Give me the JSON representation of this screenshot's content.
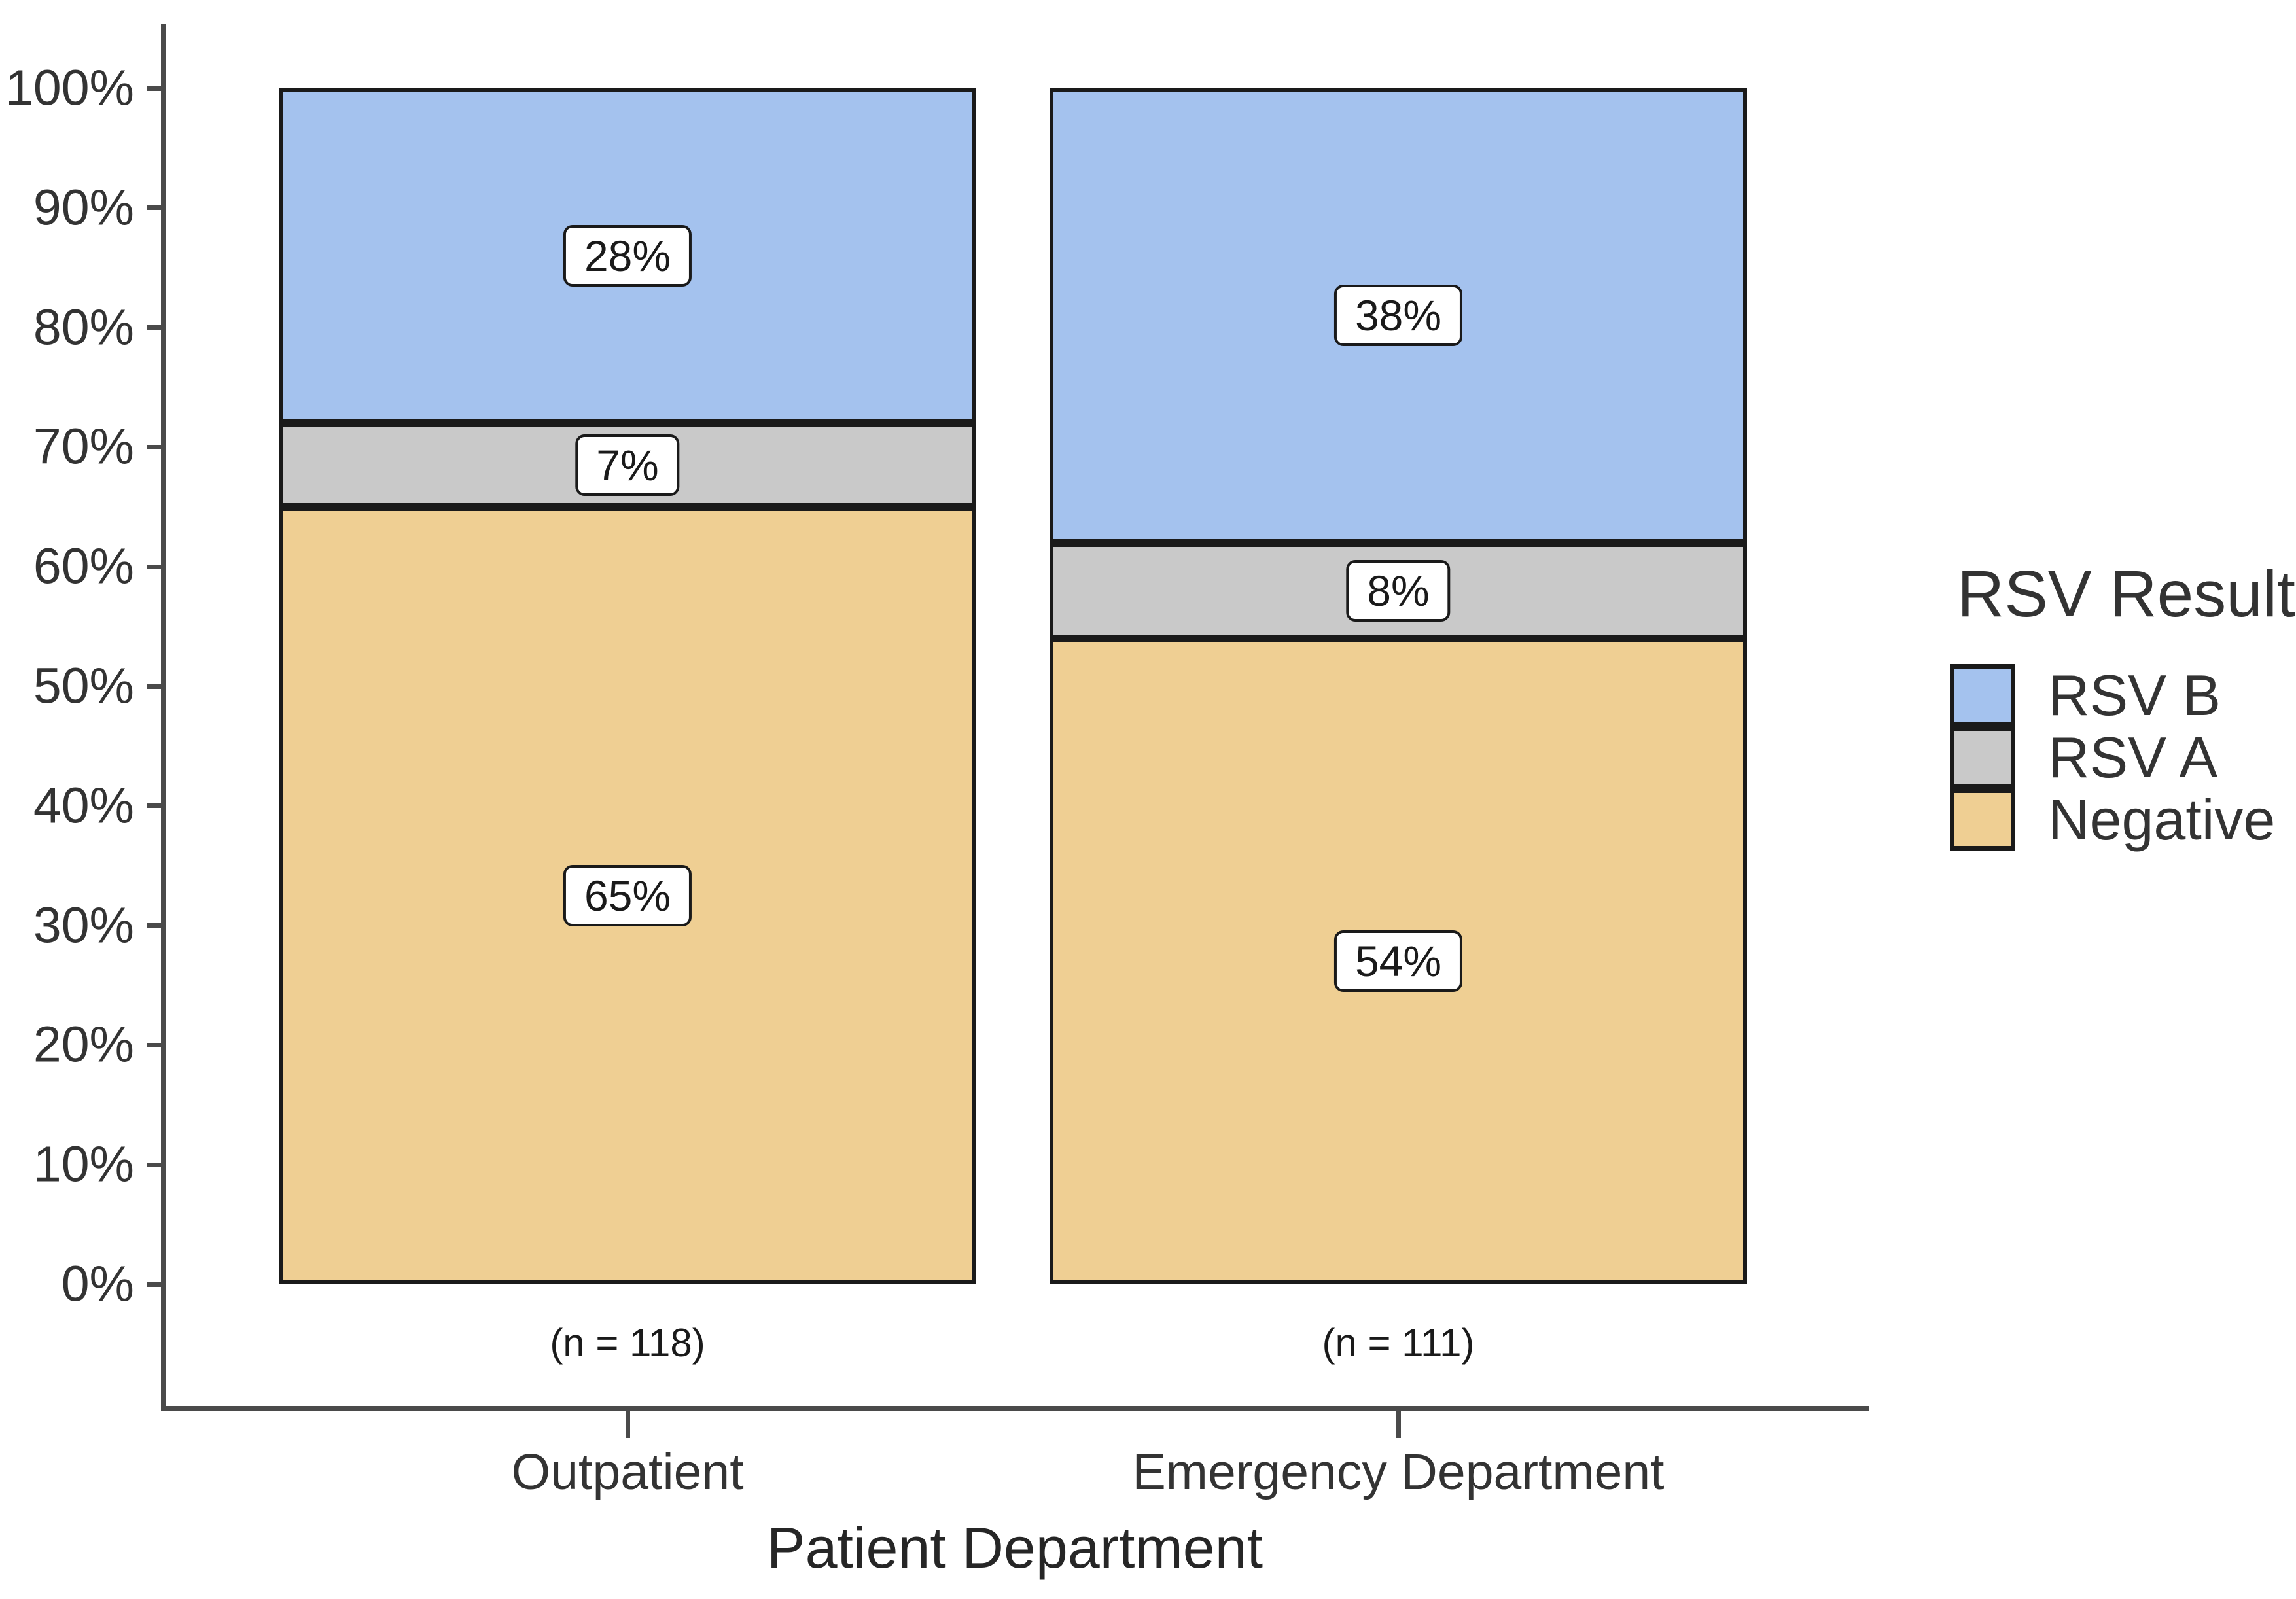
{
  "chart_data": {
    "type": "bar",
    "subtype": "stacked-percent-bar",
    "xlabel": "Patient Department",
    "ylabel": "",
    "ylim": [
      0,
      100
    ],
    "grid": false,
    "y_tick_values": [
      0,
      10,
      20,
      30,
      40,
      50,
      60,
      70,
      80,
      90,
      100
    ],
    "y_tick_labels": [
      "0%",
      "10%",
      "20%",
      "30%",
      "40%",
      "50%",
      "60%",
      "70%",
      "80%",
      "90%",
      "100%"
    ],
    "categories": [
      {
        "label": "Outpatient",
        "n_label": "(n = 118)"
      },
      {
        "label": "Emergency Department",
        "n_label": "(n = 111)"
      }
    ],
    "series": [
      {
        "name": "RSV B",
        "color": "#A4C2EE",
        "values": [
          28,
          38
        ],
        "value_labels": [
          "28%",
          "38%"
        ]
      },
      {
        "name": "RSV A",
        "color": "#C9C9C9",
        "values": [
          7,
          8
        ],
        "value_labels": [
          "7%",
          "8%"
        ]
      },
      {
        "name": "Negative",
        "color": "#EFCF93",
        "values": [
          65,
          54
        ],
        "value_labels": [
          "65%",
          "54%"
        ]
      }
    ],
    "stack_order_bottom_to_top": [
      "Negative",
      "RSV A",
      "RSV B"
    ],
    "legend": {
      "title": "RSV Result",
      "position": "right",
      "entries": [
        "RSV B",
        "RSV A",
        "Negative"
      ]
    },
    "colors": {
      "rsv_b": "#A4C2EE",
      "rsv_a": "#C9C9C9",
      "negative": "#EFCF93",
      "segment_border": "#1a1a1a",
      "axis": "#4a4a4a",
      "text": "#333333",
      "background": "#ffffff"
    }
  }
}
